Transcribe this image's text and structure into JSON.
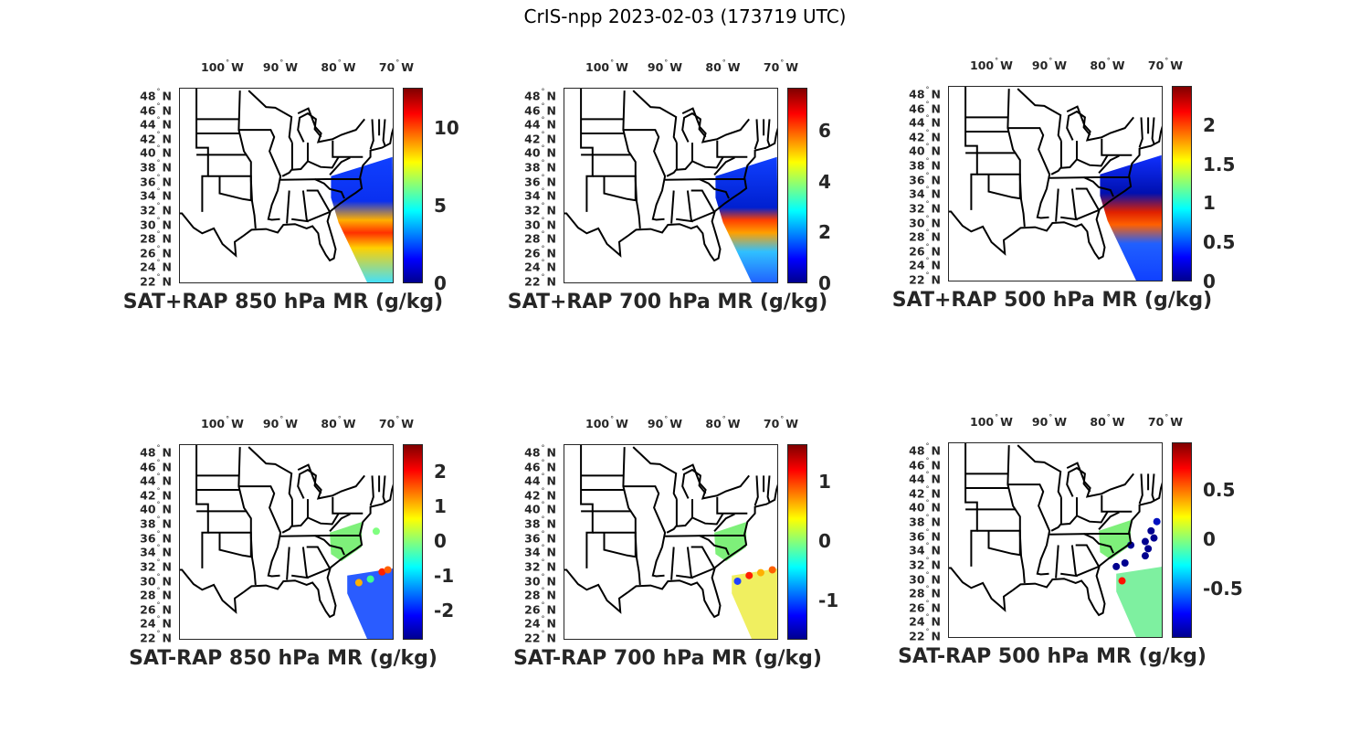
{
  "figure_title": "CrIS-npp 2023-02-03 (173719 UTC)",
  "lon_ticks": [
    {
      "value": -100,
      "num": "100",
      "hem": "W"
    },
    {
      "value": -90,
      "num": "90",
      "hem": "W"
    },
    {
      "value": -80,
      "num": "80",
      "hem": "W"
    },
    {
      "value": -70,
      "num": "70",
      "hem": "W"
    }
  ],
  "lat_ticks": [
    {
      "value": 48,
      "num": "48",
      "hem": "N"
    },
    {
      "value": 46,
      "num": "46",
      "hem": "N"
    },
    {
      "value": 44,
      "num": "44",
      "hem": "N"
    },
    {
      "value": 42,
      "num": "42",
      "hem": "N"
    },
    {
      "value": 40,
      "num": "40",
      "hem": "N"
    },
    {
      "value": 38,
      "num": "38",
      "hem": "N"
    },
    {
      "value": 36,
      "num": "36",
      "hem": "N"
    },
    {
      "value": 34,
      "num": "34",
      "hem": "N"
    },
    {
      "value": 32,
      "num": "32",
      "hem": "N"
    },
    {
      "value": 30,
      "num": "30",
      "hem": "N"
    },
    {
      "value": 28,
      "num": "28",
      "hem": "N"
    },
    {
      "value": 26,
      "num": "26",
      "hem": "N"
    },
    {
      "value": 24,
      "num": "24",
      "hem": "N"
    },
    {
      "value": 22,
      "num": "22",
      "hem": "N"
    }
  ],
  "chart_data": [
    {
      "type": "map",
      "title": "SAT+RAP 850 hPa MR (g/kg)",
      "colormap": "jet",
      "clim": [
        0,
        12.6
      ],
      "cticks": [
        0,
        5,
        10
      ],
      "ctick_labels": [
        "0",
        "5",
        "10"
      ],
      "style": "swath"
    },
    {
      "type": "map",
      "title": "SAT+RAP 700 hPa MR (g/kg)",
      "colormap": "jet",
      "clim": [
        0,
        7.7
      ],
      "cticks": [
        0,
        2,
        4,
        6
      ],
      "ctick_labels": [
        "0",
        "2",
        "4",
        "6"
      ],
      "style": "swath"
    },
    {
      "type": "map",
      "title": "SAT+RAP 500 hPa MR (g/kg)",
      "colormap": "jet",
      "clim": [
        0,
        2.5
      ],
      "cticks": [
        0,
        0.5,
        1,
        1.5,
        2
      ],
      "ctick_labels": [
        "0",
        "0.5",
        "1",
        "1.5",
        "2"
      ],
      "style": "swath"
    },
    {
      "type": "map",
      "title": "SAT-RAP 850 hPa MR (g/kg)",
      "colormap": "jet",
      "clim": [
        -2.84,
        2.79
      ],
      "cticks": [
        -2,
        -1,
        0,
        1,
        2
      ],
      "ctick_labels": [
        "-2",
        "-1",
        "0",
        "1",
        "2"
      ],
      "style": "diff"
    },
    {
      "type": "map",
      "title": "SAT-RAP 700 hPa MR (g/kg)",
      "colormap": "jet",
      "clim": [
        -1.66,
        1.63
      ],
      "cticks": [
        -1,
        0,
        1
      ],
      "ctick_labels": [
        "-1",
        "0",
        "1"
      ],
      "style": "diff"
    },
    {
      "type": "map",
      "title": "SAT-RAP 500 hPa MR (g/kg)",
      "colormap": "jet",
      "clim": [
        -1.0,
        0.98
      ],
      "cticks": [
        -0.5,
        0,
        0.5
      ],
      "ctick_labels": [
        "-0.5",
        "0",
        "0.5"
      ],
      "style": "diff"
    }
  ],
  "colors": {
    "axis": "#262626",
    "land_line": "#000000"
  }
}
